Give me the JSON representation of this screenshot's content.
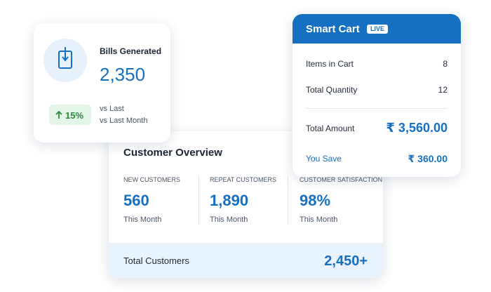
{
  "bills": {
    "title": "Bills Generated",
    "value": "2,350",
    "change": "15%",
    "compare_1": "vs Last",
    "compare_2": "vs Last Month"
  },
  "overview": {
    "title": "Customer Overview",
    "stats": [
      {
        "label": "NEW CUSTOMERS",
        "value": "560",
        "period": "This Month"
      },
      {
        "label": "REPEAT CUSTOMERS",
        "value": "1,890",
        "period": "This Month"
      },
      {
        "label": "CUSTOMER SATISFACTION",
        "value": "98%",
        "period": "This Month"
      }
    ],
    "footer": {
      "label": "Total Customers",
      "value": "2,450+"
    }
  },
  "cart": {
    "title": "Smart Cart",
    "badge": "LIVE",
    "rows": [
      {
        "label": "Items in Cart",
        "value": "8"
      },
      {
        "label": "Total Quantity",
        "value": "12"
      },
      {
        "label": "Total Amount",
        "value": "₹ 3,560.00"
      },
      {
        "label": "You Save",
        "value": "₹ 360.00"
      }
    ]
  }
}
